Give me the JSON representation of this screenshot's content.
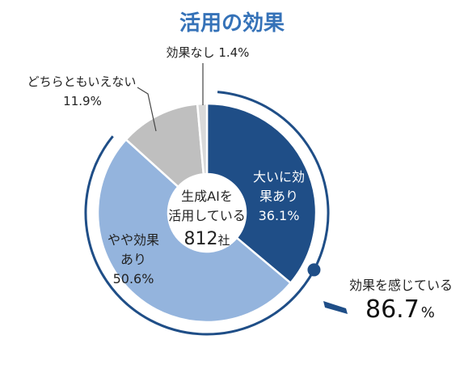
{
  "chart_data": {
    "type": "pie",
    "variant": "donut",
    "title": "活用の効果",
    "categories": [
      "大いに効果あり",
      "やや効果あり",
      "どちらともいえない",
      "効果なし"
    ],
    "values": [
      36.1,
      50.6,
      11.9,
      1.4
    ],
    "unit": "%",
    "colors": [
      "#1F4E87",
      "#94B4DD",
      "#BFBFBF",
      "#D9D9D9"
    ],
    "slice_labels": [
      {
        "lines": [
          "大いに効",
          "果あり",
          "36.1%"
        ]
      },
      {
        "lines": [
          "やや効果",
          "あり",
          "50.6%"
        ]
      },
      {
        "lines": [
          "どちらともいえない",
          "11.9%"
        ]
      },
      {
        "lines": [
          "効果なし 1.4%"
        ]
      }
    ],
    "center_label": {
      "lines": [
        "生成AIを",
        "活用している"
      ],
      "count": "812",
      "count_unit": "社"
    },
    "summary": {
      "label": "効果を感じている",
      "value": "86.7",
      "unit": "%"
    },
    "arc_color": "#1F4E87"
  }
}
